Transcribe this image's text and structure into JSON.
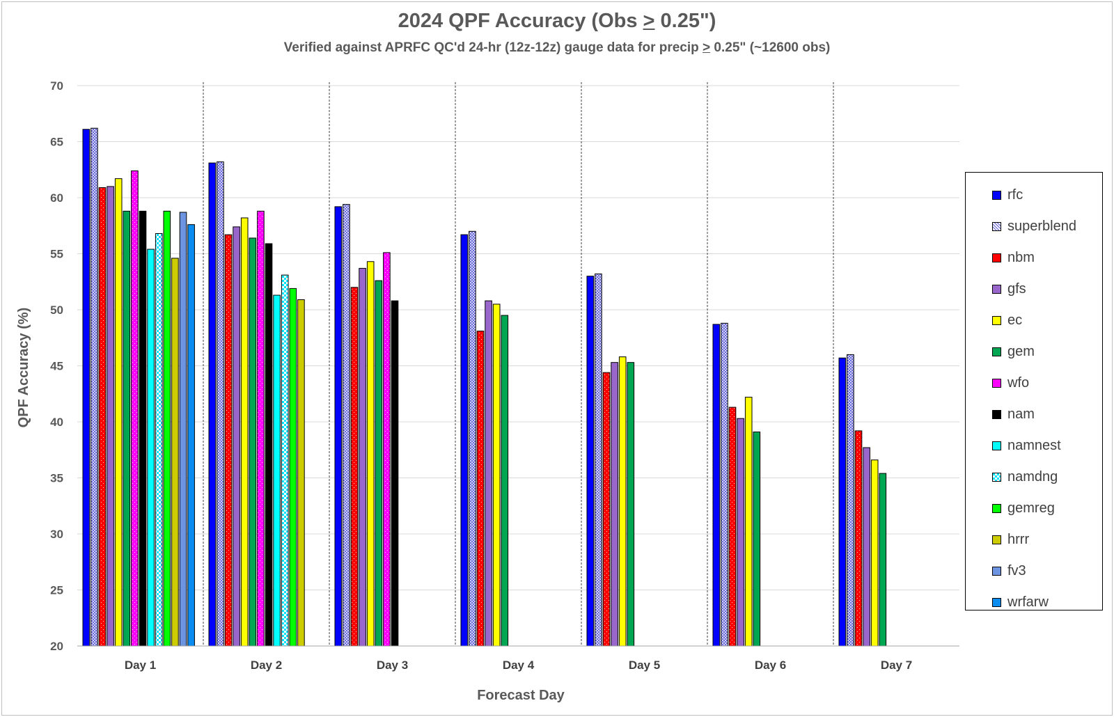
{
  "chart_data": {
    "type": "bar",
    "title_prefix": "2024 QPF Accuracy (Obs ",
    "title_op": ">",
    "title_suffix": " 0.25\")",
    "subtitle_prefix": "Verified against APRFC QC'd 24-hr (12z-12z) gauge data for precip ",
    "subtitle_op": ">",
    "subtitle_suffix": " 0.25\" (~12600 obs)",
    "xlabel": "Forecast Day",
    "ylabel": "QPF Accuracy (%)",
    "ylim": [
      20,
      70
    ],
    "yticks": [
      20,
      25,
      30,
      35,
      40,
      45,
      50,
      55,
      60,
      65,
      70
    ],
    "grid": "horizontal",
    "legend_position": "right",
    "categories": [
      "Day 1",
      "Day 2",
      "Day 3",
      "Day 4",
      "Day 5",
      "Day 6",
      "Day 7"
    ],
    "series": [
      {
        "name": "rfc",
        "color": "#0000ff",
        "pattern": "solid",
        "values": [
          66.1,
          63.1,
          59.2,
          56.7,
          53.0,
          48.7,
          45.7
        ]
      },
      {
        "name": "superblend",
        "color": "#8c8cff",
        "pattern": "crosshatch",
        "values": [
          66.2,
          63.2,
          59.4,
          57.0,
          53.2,
          48.8,
          46.0
        ]
      },
      {
        "name": "nbm",
        "color": "#ff0000",
        "pattern": "dotted",
        "values": [
          60.9,
          56.7,
          52.0,
          48.1,
          44.4,
          41.3,
          39.2
        ]
      },
      {
        "name": "gfs",
        "color": "#9966cc",
        "pattern": "solid",
        "values": [
          61.0,
          57.4,
          53.7,
          50.8,
          45.3,
          40.3,
          37.7
        ]
      },
      {
        "name": "ec",
        "color": "#ffff00",
        "pattern": "solid",
        "values": [
          61.7,
          58.2,
          54.3,
          50.5,
          45.8,
          42.2,
          36.6
        ]
      },
      {
        "name": "gem",
        "color": "#00a651",
        "pattern": "solid",
        "values": [
          58.8,
          56.4,
          52.6,
          49.5,
          45.3,
          39.1,
          35.4
        ]
      },
      {
        "name": "wfo",
        "color": "#ff00ff",
        "pattern": "dotted",
        "values": [
          62.4,
          58.8,
          55.1,
          null,
          null,
          null,
          null
        ]
      },
      {
        "name": "nam",
        "color": "#000000",
        "pattern": "solid",
        "values": [
          58.8,
          55.9,
          50.8,
          null,
          null,
          null,
          null
        ]
      },
      {
        "name": "namnest",
        "color": "#00ffff",
        "pattern": "solid",
        "values": [
          55.4,
          51.3,
          null,
          null,
          null,
          null,
          null
        ]
      },
      {
        "name": "namdng",
        "color": "#00ffff",
        "pattern": "checker",
        "values": [
          56.8,
          53.1,
          null,
          null,
          null,
          null,
          null
        ]
      },
      {
        "name": "gemreg",
        "color": "#00ff00",
        "pattern": "solid",
        "values": [
          58.8,
          51.9,
          null,
          null,
          null,
          null,
          null
        ]
      },
      {
        "name": "hrrr",
        "color": "#cccc00",
        "pattern": "solid",
        "values": [
          54.6,
          50.9,
          null,
          null,
          null,
          null,
          null
        ]
      },
      {
        "name": "fv3",
        "color": "#6d94e0",
        "pattern": "solid",
        "values": [
          58.7,
          null,
          null,
          null,
          null,
          null,
          null
        ]
      },
      {
        "name": "wrfarw",
        "color": "#0a8cf0",
        "pattern": "solid",
        "values": [
          57.6,
          null,
          null,
          null,
          null,
          null,
          null
        ]
      }
    ]
  }
}
